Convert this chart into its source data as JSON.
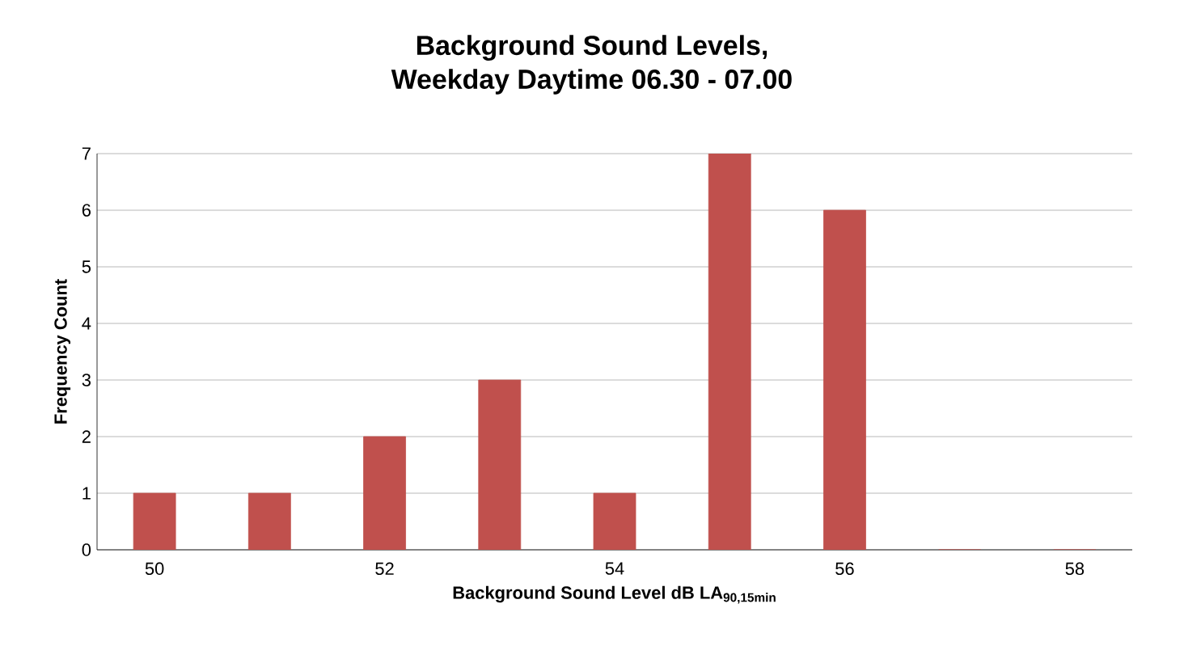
{
  "chart_data": {
    "type": "bar",
    "title": "Background Sound Levels,\nWeekday Daytime 06.30 - 07.00",
    "xlabel": "Background Sound Level dB LA$_{90,15min}$",
    "ylabel": "Frequency Count",
    "categories": [
      "50",
      null,
      "52",
      null,
      "54",
      null,
      "56",
      null,
      "58"
    ],
    "values": [
      1,
      1,
      2,
      3,
      1,
      7,
      6,
      0,
      0
    ],
    "color": "#c0504d",
    "ylim": [
      0,
      7
    ],
    "yticks": [
      0,
      1,
      2,
      3,
      4,
      5,
      6,
      7
    ],
    "grid": "y"
  }
}
